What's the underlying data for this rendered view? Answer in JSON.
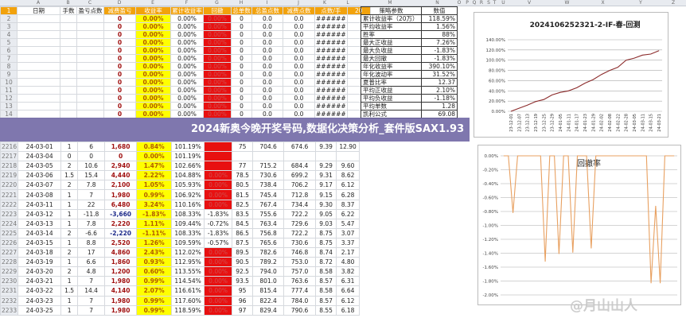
{
  "column_letters": [
    "A",
    "B",
    "C",
    "D",
    "E",
    "F",
    "G",
    "H",
    "I",
    "J",
    "K",
    "L",
    "M",
    "N",
    "O",
    "P",
    "Q",
    "R",
    "S",
    "T",
    "U",
    "V",
    "W",
    "X",
    "Y",
    "Z"
  ],
  "sheet": {
    "header_row": {
      "row": "1",
      "cells": [
        "日期",
        "手数",
        "盈亏点数",
        "减费盈亏",
        "收益率",
        "累计收益率",
        "回撤",
        "总单数",
        "总盈点数",
        "减费点数",
        "点数/手",
        "20"
      ]
    },
    "empty_rows": {
      "row_numbers": [
        "2",
        "3",
        "4",
        "5",
        "6",
        "7",
        "8",
        "9",
        "10",
        "11",
        "12",
        "13",
        "14"
      ],
      "cells": [
        "",
        "",
        "",
        "0",
        "0.00%",
        "0.00%",
        "0.00%",
        "0",
        "0.0",
        "0.0",
        "######",
        ""
      ]
    },
    "rows": [
      [
        "2216",
        "24-03-01",
        "1",
        "6",
        "1,680",
        "0.84%",
        "101.19%",
        "",
        "75",
        "704.6",
        "674.6",
        "9.39",
        "12.90"
      ],
      [
        "2217",
        "24-03-04",
        "0",
        "0",
        "0",
        "0.00%",
        "101.19%",
        "",
        "",
        "",
        "",
        "",
        ""
      ],
      [
        "2218",
        "24-03-05",
        "2",
        "10.6",
        "2,940",
        "1.47%",
        "102.66%",
        "",
        "77",
        "715.2",
        "684.4",
        "9.29",
        "9.60"
      ],
      [
        "2219",
        "24-03-06",
        "1.5",
        "15.4",
        "4,440",
        "2.22%",
        "104.88%",
        "0.00%",
        "78.5",
        "730.6",
        "699.2",
        "9.31",
        "8.62"
      ],
      [
        "2220",
        "24-03-07",
        "2",
        "7.8",
        "2,100",
        "1.05%",
        "105.93%",
        "0.00%",
        "80.5",
        "738.4",
        "706.2",
        "9.17",
        "6.12"
      ],
      [
        "2221",
        "24-03-08",
        "1",
        "7",
        "1,980",
        "0.99%",
        "106.92%",
        "0.00%",
        "81.5",
        "745.4",
        "712.8",
        "9.15",
        "6.28"
      ],
      [
        "2222",
        "24-03-11",
        "1",
        "22",
        "6,480",
        "3.24%",
        "110.16%",
        "0.00%",
        "82.5",
        "767.4",
        "734.4",
        "9.30",
        "8.37"
      ],
      [
        "2223",
        "24-03-12",
        "1",
        "-11.8",
        "-3,660",
        "-1.83%",
        "108.33%",
        "-1.83%",
        "83.5",
        "755.6",
        "722.2",
        "9.05",
        "6.22"
      ],
      [
        "2224",
        "24-03-13",
        "1",
        "7.8",
        "2,220",
        "1.11%",
        "109.44%",
        "-0.72%",
        "84.5",
        "763.4",
        "729.6",
        "9.03",
        "5.47"
      ],
      [
        "2225",
        "24-03-14",
        "2",
        "-6.6",
        "-2,220",
        "-1.11%",
        "108.33%",
        "-1.83%",
        "86.5",
        "756.8",
        "722.2",
        "8.75",
        "3.07"
      ],
      [
        "2226",
        "24-03-15",
        "1",
        "8.8",
        "2,520",
        "1.26%",
        "109.59%",
        "-0.57%",
        "87.5",
        "765.6",
        "730.6",
        "8.75",
        "3.37"
      ],
      [
        "2227",
        "24-03-18",
        "2",
        "17",
        "4,860",
        "2.43%",
        "112.02%",
        "0.00%",
        "89.5",
        "782.6",
        "746.8",
        "8.74",
        "2.17"
      ],
      [
        "2228",
        "24-03-19",
        "1",
        "6.6",
        "1,860",
        "0.93%",
        "112.95%",
        "0.00%",
        "90.5",
        "789.2",
        "753.0",
        "8.72",
        "4.80"
      ],
      [
        "2229",
        "24-03-20",
        "2",
        "4.8",
        "1,200",
        "0.60%",
        "113.55%",
        "0.00%",
        "92.5",
        "794.0",
        "757.0",
        "8.58",
        "3.82"
      ],
      [
        "2230",
        "24-03-21",
        "1",
        "7",
        "1,980",
        "0.99%",
        "114.54%",
        "0.00%",
        "93.5",
        "801.0",
        "763.6",
        "8.57",
        "6.31"
      ],
      [
        "2231",
        "24-03-22",
        "1.5",
        "14.4",
        "4,140",
        "2.07%",
        "116.61%",
        "0.00%",
        "95",
        "815.4",
        "777.4",
        "8.58",
        "6.64"
      ],
      [
        "2232",
        "24-03-23",
        "1",
        "7",
        "1,980",
        "0.99%",
        "117.60%",
        "0.00%",
        "96",
        "822.4",
        "784.0",
        "8.57",
        "6.12"
      ],
      [
        "2233",
        "24-03-25",
        "1",
        "7",
        "1,980",
        "0.99%",
        "118.59%",
        "0.00%",
        "97",
        "829.4",
        "790.6",
        "8.55",
        "6.18"
      ]
    ]
  },
  "params": {
    "header": [
      "策略参数",
      "数值"
    ],
    "items": [
      [
        "累计收益率（20万）",
        "118.59%"
      ],
      [
        "平均收益率",
        "1.56%"
      ],
      [
        "胜率",
        "88%"
      ],
      [
        "最大正收益",
        "7.26%"
      ],
      [
        "最大负收益",
        "-1.83%"
      ],
      [
        "最大回撤",
        "-1.83%"
      ],
      [
        "年化收益率",
        "390.10%"
      ],
      [
        "年化波动率",
        "31.52%"
      ],
      [
        "夏普比率",
        "12.37"
      ],
      [
        "平均正收益",
        "2.10%"
      ],
      [
        "平均负收益",
        "-1.18%"
      ],
      [
        "平均单数",
        "1.28"
      ],
      [
        "凯利公式",
        "69.08"
      ]
    ]
  },
  "banner": {
    "text": "2024新奥今晚开奖号码,数据化决策分析_套件版SAX1.93"
  },
  "watermark": "@月山山人",
  "chart_data": [
    {
      "type": "line",
      "title": "2024106252321-2-IF-春-回测",
      "color": "#8b2a2a",
      "ylim": [
        0,
        140
      ],
      "yticks": [
        "0.00%",
        "20.00%",
        "40.00%",
        "60.00%",
        "80.00%",
        "100.00%",
        "120.00%",
        "140.00%"
      ],
      "categories": [
        "23-12-01",
        "23-12-07",
        "23-12-13",
        "23-12-19",
        "23-12-25",
        "23-12-29",
        "24-01-05",
        "24-01-11",
        "24-01-17",
        "24-01-23",
        "24-01-29",
        "24-02-02",
        "24-02-08",
        "24-02-22",
        "24-02-28",
        "24-03-05",
        "24-03-11",
        "24-03-15",
        "24-03-21"
      ],
      "values": [
        0,
        6,
        12,
        19,
        23,
        32,
        37,
        40,
        46,
        55,
        62,
        72,
        80,
        86,
        100,
        104,
        110,
        112,
        118.59
      ],
      "grid": true
    },
    {
      "type": "line",
      "title": "回撤率",
      "color": "#e8a060",
      "ylim": [
        -2,
        0
      ],
      "yticks": [
        "0.00%",
        "-0.20%",
        "-0.40%",
        "-0.60%",
        "-0.80%",
        "-1.00%",
        "-1.20%",
        "-1.40%",
        "-1.60%",
        "-1.80%",
        "-2.00%"
      ],
      "values": [
        0,
        0,
        -0.82,
        0,
        0,
        0,
        0,
        0,
        0,
        -1.52,
        0,
        0,
        -1.41,
        0,
        0,
        -1.39,
        0,
        0,
        0,
        -1.33,
        0,
        0,
        0,
        0,
        0,
        0,
        0,
        0,
        0,
        0,
        0,
        0,
        -1.83,
        -0.72,
        -1.83,
        0,
        0,
        0
      ],
      "grid": true
    }
  ]
}
